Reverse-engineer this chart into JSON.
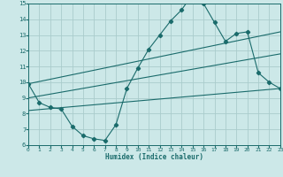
{
  "bg_color": "#cce8e8",
  "grid_color": "#aacccc",
  "line_color": "#1a6b6b",
  "x_min": 0,
  "x_max": 23,
  "y_min": 6,
  "y_max": 15,
  "xlabel": "Humidex (Indice chaleur)",
  "line_main": {
    "x": [
      0,
      1,
      2,
      3,
      4,
      5,
      6,
      7,
      8,
      9,
      10,
      11,
      12,
      13,
      14,
      15,
      16,
      17,
      18,
      19,
      20,
      21,
      22,
      23
    ],
    "y": [
      9.9,
      8.7,
      8.4,
      8.3,
      7.2,
      6.6,
      6.4,
      6.3,
      7.3,
      9.6,
      10.9,
      12.1,
      13.0,
      13.9,
      14.6,
      15.6,
      15.0,
      13.8,
      12.6,
      13.1,
      13.2,
      10.6,
      10.0,
      9.6
    ]
  },
  "line_upper": {
    "x": [
      0,
      23
    ],
    "y": [
      9.9,
      13.2
    ]
  },
  "line_lower": {
    "x": [
      0,
      23
    ],
    "y": [
      8.2,
      9.6
    ]
  },
  "line_mid": {
    "x": [
      0,
      23
    ],
    "y": [
      9.0,
      11.8
    ]
  }
}
